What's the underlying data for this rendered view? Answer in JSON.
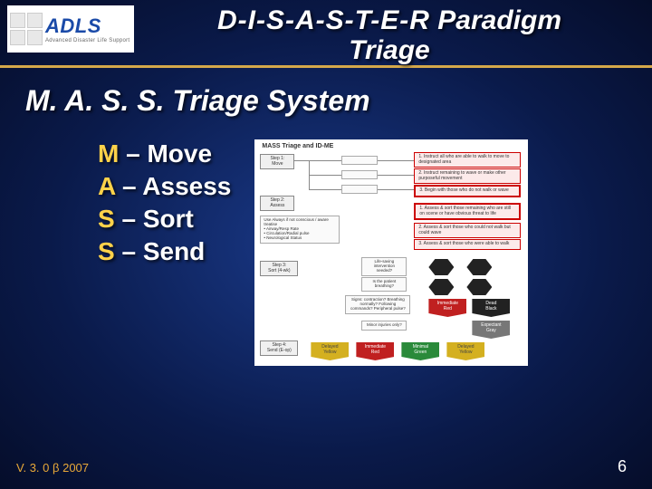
{
  "header": {
    "logo": {
      "main": "ADLS",
      "sub": "Advanced Disaster Life Support"
    },
    "title_line1_spaced": "D-I-S-A-S-T-E-R",
    "title_line1_rest": " Paradigm",
    "title_line2": "Triage"
  },
  "subtitle": "M. A. S. S. Triage System",
  "bullets": [
    {
      "letter": "M",
      "rest": " – Move"
    },
    {
      "letter": "A",
      "rest": " – Assess"
    },
    {
      "letter": "S",
      "rest": " – Sort"
    },
    {
      "letter": "S",
      "rest": " – Send"
    }
  ],
  "diagram": {
    "title": "MASS Triage and ID-ME",
    "step1": "Step 1:\nMove",
    "step2": "Step 2:\nAssess",
    "step2_detail": "Use Always if not conscious / aware treatise\n• Airway/Resp Rate\n• Circulation/Radial pulse\n• Neurological Status",
    "step3": "Step 3:\nSort (4-wk)",
    "step4": "Step 4:\nSend (E-op)",
    "red1": "1. Instruct all who are able to walk to move to designated area",
    "red2": "2. Instruct remaining to wave or make other purposeful movement",
    "red3": "3. Begin with those who do not walk or wave",
    "red4": "1. Assess & sort those remaining who are still on scene or have obvious threat to life",
    "red5": "2. Assess & sort those who could not walk but could wave",
    "red6": "3. Assess & sort those who were able to walk",
    "q1": "Life-saving intervention needed?",
    "q2": "Is the patient breathing?",
    "q3": "Signs: contraction? Breathing normally? Following commands? Peripheral pulse?",
    "q4": "Minor injuries only?",
    "tags": {
      "immediate": {
        "label": "Immediate\nRed",
        "color": "#c02020"
      },
      "dead": {
        "label": "Dead\nBlack",
        "color": "#222222"
      },
      "expectant": {
        "label": "Expectant\nGray",
        "color": "#777777"
      },
      "delayed": {
        "label": "Delayed\nYellow",
        "color": "#d4b020",
        "text": "#444"
      },
      "immediate2": {
        "label": "Immediate\nRed",
        "color": "#c02020"
      },
      "minimal": {
        "label": "Minimal\nGreen",
        "color": "#2a8a3a"
      },
      "delayed2": {
        "label": "Delayed\nYellow",
        "color": "#d4b020",
        "text": "#444"
      }
    }
  },
  "footer": {
    "version": "V. 3. 0 β 2007",
    "page": "6"
  },
  "colors": {
    "accent_gold": "#d4a84a",
    "highlight_yellow": "#ffd24a",
    "bg_center": "#1a3a8a",
    "bg_edge": "#050d2a"
  }
}
